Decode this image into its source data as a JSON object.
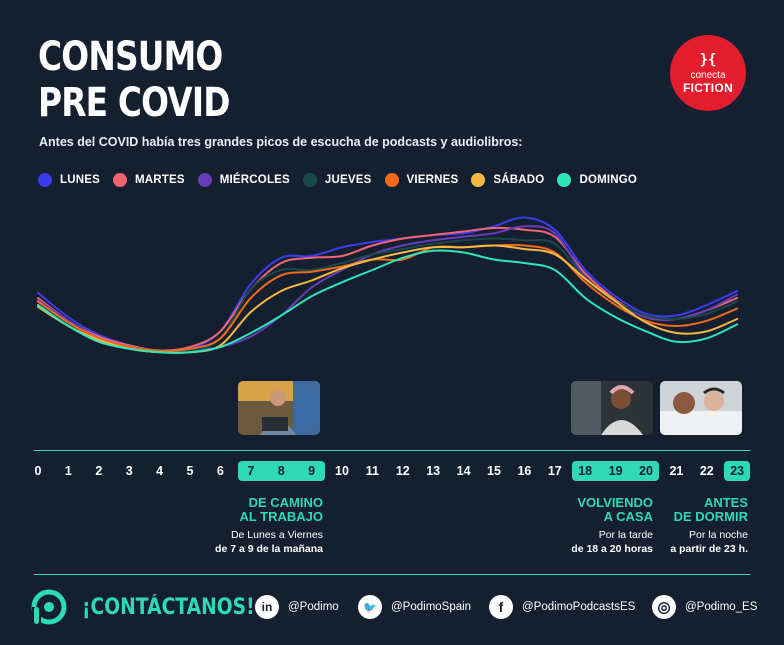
{
  "title_lines": [
    "CONSUMO",
    "PRE COVID"
  ],
  "subtitle": "Antes del COVID había tres grandes picos de escucha de podcasts y audiolibros:",
  "badge": {
    "glyph": "}{",
    "line1": "conecta",
    "line2": "FICTION",
    "color": "#e11d2e"
  },
  "accent_color": "#2fd9b2",
  "chart_data": {
    "type": "line",
    "x": [
      0,
      1,
      2,
      3,
      4,
      5,
      6,
      7,
      8,
      9,
      10,
      11,
      12,
      13,
      14,
      15,
      16,
      17,
      18,
      19,
      20,
      21,
      22,
      23
    ],
    "categories": [
      "0",
      "1",
      "2",
      "3",
      "4",
      "5",
      "6",
      "7",
      "8",
      "9",
      "10",
      "11",
      "12",
      "13",
      "14",
      "15",
      "16",
      "17",
      "18",
      "19",
      "20",
      "21",
      "22",
      "23"
    ],
    "highlighted_hours": [
      7,
      8,
      9,
      18,
      19,
      20,
      23
    ],
    "ylim": [
      0,
      100
    ],
    "grid": false,
    "legend_position": "top-left",
    "series": [
      {
        "name": "LUNES",
        "color": "#3b3bf0",
        "values": [
          47,
          33,
          23,
          17,
          14,
          15,
          25,
          52,
          67,
          68,
          73,
          76,
          78,
          80,
          81,
          85,
          90,
          83,
          60,
          45,
          35,
          34,
          40,
          48
        ]
      },
      {
        "name": "MARTES",
        "color": "#f06674",
        "values": [
          44,
          31,
          22,
          17,
          14,
          16,
          25,
          49,
          64,
          67,
          68,
          74,
          78,
          80,
          82,
          84,
          83,
          79,
          58,
          43,
          33,
          32,
          37,
          44
        ]
      },
      {
        "name": "MIÉRCOLES",
        "color": "#6a3db8",
        "values": [
          43,
          31,
          21,
          16,
          14,
          14,
          16,
          22,
          34,
          50,
          60,
          69,
          74,
          77,
          79,
          81,
          85,
          81,
          56,
          42,
          33,
          32,
          37,
          46
        ]
      },
      {
        "name": "JUEVES",
        "color": "#1a4a48",
        "values": [
          40,
          29,
          20,
          16,
          14,
          14,
          21,
          49,
          60,
          60,
          64,
          69,
          72,
          75,
          77,
          78,
          77,
          75,
          55,
          42,
          34,
          32,
          35,
          42
        ]
      },
      {
        "name": "VIERNES",
        "color": "#f26a1b",
        "values": [
          42,
          30,
          21,
          16,
          14,
          15,
          21,
          44,
          57,
          59,
          62,
          66,
          66,
          73,
          73,
          74,
          74,
          70,
          53,
          40,
          31,
          28,
          31,
          38
        ]
      },
      {
        "name": "SÁBADO",
        "color": "#f5b942",
        "values": [
          39,
          28,
          20,
          15,
          13,
          13,
          17,
          36,
          48,
          54,
          61,
          66,
          70,
          73,
          73,
          74,
          72,
          69,
          55,
          42,
          30,
          24,
          25,
          32
        ]
      },
      {
        "name": "DOMINGO",
        "color": "#2ee6b6",
        "values": [
          40,
          28,
          19,
          15,
          13,
          13,
          16,
          24,
          34,
          45,
          53,
          60,
          67,
          71,
          70,
          66,
          64,
          60,
          44,
          33,
          25,
          19,
          21,
          29
        ]
      }
    ]
  },
  "annotations": [
    {
      "head1": "DE CAMINO",
      "head2": "AL TRABAJO",
      "sub": "De Lunes a Viernes",
      "sub2": "de 7 a 9 de la mañana"
    },
    {
      "head1": "VOLVIENDO",
      "head2": "A CASA",
      "sub": "Por la tarde",
      "sub2": "de 18 a 20 horas"
    },
    {
      "head1": "ANTES",
      "head2": "DE DORMIR",
      "sub": "Por la noche",
      "sub2": "a partir de 23 h."
    }
  ],
  "contact_label": "¡CONTÁCTANOS!",
  "social": [
    {
      "icon": "linkedin-icon",
      "glyph": "in",
      "handle": "@Podimo"
    },
    {
      "icon": "twitter-icon",
      "glyph": "🐦",
      "handle": "@PodimoSpain"
    },
    {
      "icon": "facebook-icon",
      "glyph": "f",
      "handle": "@PodimoPodcastsES"
    },
    {
      "icon": "instagram-icon",
      "glyph": "◎",
      "handle": "@Podimo_ES"
    }
  ]
}
